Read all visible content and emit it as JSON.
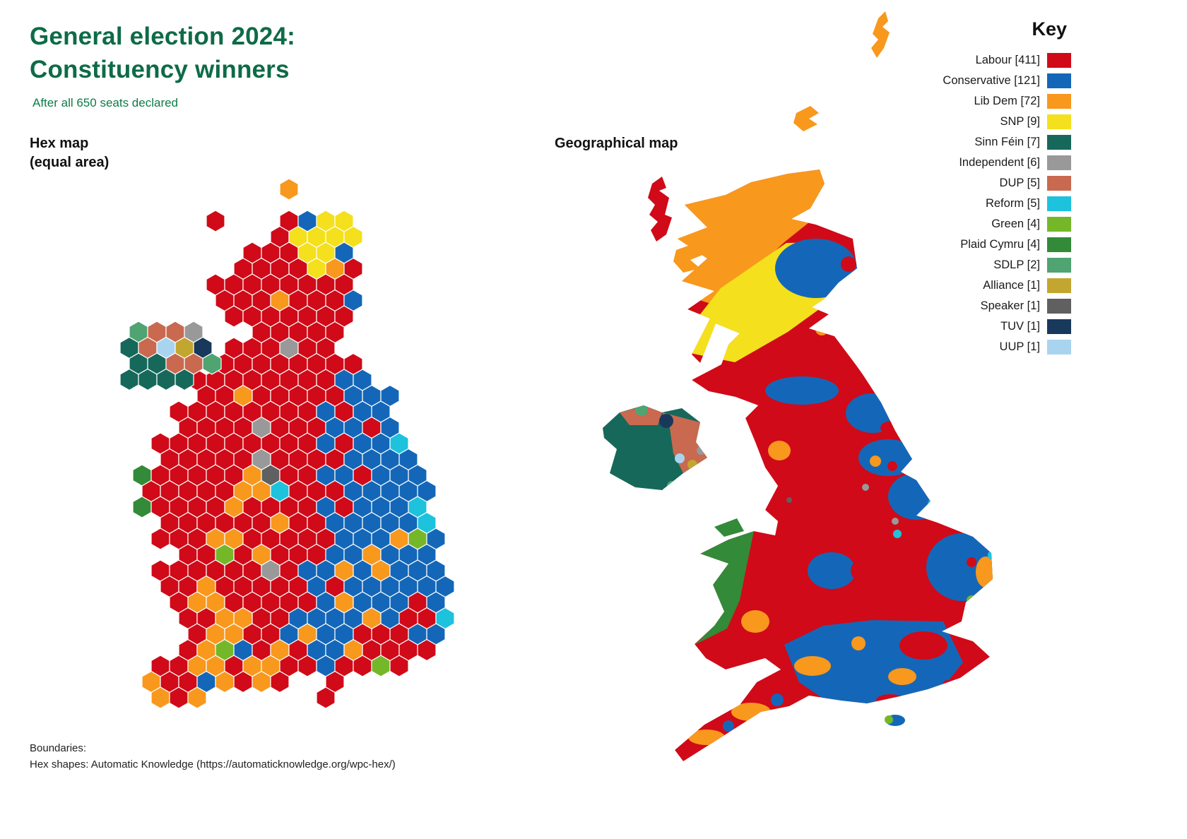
{
  "title": {
    "line1": "General election 2024:",
    "line2": "Constituency winners",
    "subtitle": "After all 650 seats declared"
  },
  "section_labels": {
    "hex_map_line1": "Hex map",
    "hex_map_line2": "(equal area)",
    "geo_map": "Geographical map"
  },
  "key": {
    "title": "Key",
    "entries": [
      {
        "party": "Labour",
        "seats": 411,
        "code": "L"
      },
      {
        "party": "Conservative",
        "seats": 121,
        "code": "C"
      },
      {
        "party": "Lib Dem",
        "seats": 72,
        "code": "D"
      },
      {
        "party": "SNP",
        "seats": 9,
        "code": "S"
      },
      {
        "party": "Sinn Féin",
        "seats": 7,
        "code": "F"
      },
      {
        "party": "Independent",
        "seats": 6,
        "code": "I"
      },
      {
        "party": "DUP",
        "seats": 5,
        "code": "U"
      },
      {
        "party": "Reform",
        "seats": 5,
        "code": "R"
      },
      {
        "party": "Green",
        "seats": 4,
        "code": "G"
      },
      {
        "party": "Plaid Cymru",
        "seats": 4,
        "code": "P"
      },
      {
        "party": "SDLP",
        "seats": 2,
        "code": "E"
      },
      {
        "party": "Alliance",
        "seats": 1,
        "code": "A"
      },
      {
        "party": "Speaker",
        "seats": 1,
        "code": "K"
      },
      {
        "party": "TUV",
        "seats": 1,
        "code": "T"
      },
      {
        "party": "UUP",
        "seats": 1,
        "code": "B"
      }
    ]
  },
  "palette": {
    "L": "#d00a18",
    "C": "#1467b8",
    "D": "#f8981d",
    "S": "#f4e01c",
    "F": "#16685a",
    "I": "#999999",
    "U": "#c9694f",
    "R": "#1dc2dd",
    "G": "#74b829",
    "P": "#338a38",
    "E": "#4fa471",
    "A": "#c3a62f",
    "K": "#606060",
    "T": "#18395c",
    "B": "#a9d4f0"
  },
  "text_colors": {
    "title": "#0e6b47",
    "subtitle": "#0c7c45"
  },
  "hex_map": {
    "main_rows": [
      "........D",
      "",
      "....L...LCSS",
      ".......LSSSS",
      "......LLLSSC",
      ".....LLLLSDL",
      "....LLLLLLLL",
      "....LLLDLLLC",
      ".....LLLLLLL",
      "......LLLLL",
      ".....LLLILL",
      "....LLLLLLLL",
      "...LLLLLLLLCC",
      "...LLDLLLLLCCC",
      "..LLLLLLLLCLCC",
      "..LLLLILLLCCLC",
      ".LLLLLLLLLCLCCR",
      ".LLLLLILLLLCCCC",
      "PLLLLLDKLLCCLCCC",
      "LLLLLDDRLLLCCCCC",
      "PLLLLDLLLLCLCCCR",
      ".LLLLLLDLLCCCCCR",
      ".LLLDDLLLLLCCCDGC",
      "..LLGLDLLLCCDCCC",
      ".LLLLLLILCCDCDCCC",
      ".LLDLLLLLCLCCCCCC",
      "..LDDLLLLLCDCCCLC",
      "..LLDDLLCCCCDCLLR",
      "...LDDLLCDCCLLLCC",
      "..LDGCLDLCCDLLLL",
      ".LLDDLDDLLCLLGL",
      "DLLCDLDL..L",
      ".DLD......L"
    ],
    "ni_rows": [
      "EUUI",
      "FUBAT",
      "FFUUE",
      "FFFF"
    ]
  },
  "footer": {
    "line1": "Boundaries:",
    "line2": "Hex shapes: Automatic Knowledge (https://automaticknowledge.org/wpc-hex/)"
  }
}
